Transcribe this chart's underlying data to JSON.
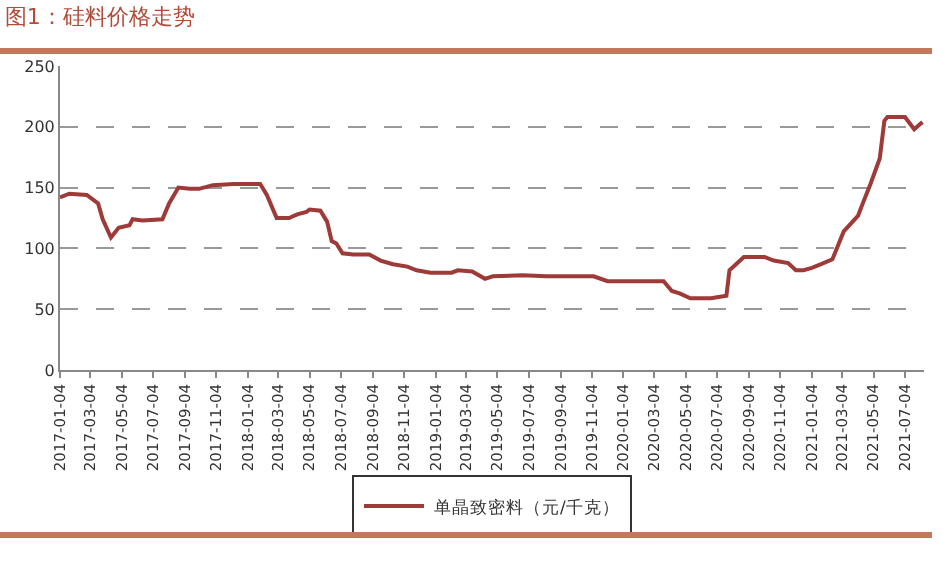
{
  "chart_data": {
    "type": "line",
    "title": "图1：硅料价格走势",
    "x": [
      "2017-01-04",
      "2017-01-22",
      "2017-02-25",
      "2017-03-19",
      "2017-03-28",
      "2017-04-13",
      "2017-04-28",
      "2017-05-19",
      "2017-05-25",
      "2017-06-13",
      "2017-07-22",
      "2017-08-04",
      "2017-08-22",
      "2017-09-13",
      "2017-10-01",
      "2017-10-28",
      "2017-12-07",
      "2018-01-28",
      "2018-02-10",
      "2018-03-01",
      "2018-03-25",
      "2018-04-10",
      "2018-04-28",
      "2018-05-04",
      "2018-05-25",
      "2018-06-07",
      "2018-06-16",
      "2018-06-25",
      "2018-07-07",
      "2018-07-28",
      "2018-08-28",
      "2018-09-19",
      "2018-10-13",
      "2018-11-10",
      "2018-11-28",
      "2018-12-25",
      "2019-02-04",
      "2019-02-16",
      "2019-03-16",
      "2019-04-10",
      "2019-04-25",
      "2019-06-22",
      "2019-08-07",
      "2019-11-07",
      "2019-12-04",
      "2020-03-22",
      "2020-04-07",
      "2020-04-22",
      "2020-05-13",
      "2020-06-22",
      "2020-07-22",
      "2020-07-28",
      "2020-08-25",
      "2020-10-04",
      "2020-10-22",
      "2020-11-19",
      "2020-12-04",
      "2020-12-19",
      "2021-01-04",
      "2021-01-22",
      "2021-02-13",
      "2021-03-07",
      "2021-04-04",
      "2021-04-13",
      "2021-04-28",
      "2021-05-16",
      "2021-05-25",
      "2021-05-31",
      "2021-07-04",
      "2021-07-22",
      "2021-08-07"
    ],
    "series": [
      {
        "name": "单晶致密料（元/千克）",
        "color": "#9e3a38",
        "values": [
          142,
          145,
          144,
          137,
          124,
          109,
          117,
          119,
          124,
          123,
          124,
          137,
          150,
          149,
          149,
          152,
          153,
          153,
          144,
          125,
          125,
          128,
          130,
          132,
          131,
          122,
          106,
          104,
          96,
          95,
          95,
          90,
          87,
          85,
          82,
          80,
          80,
          82,
          81,
          75,
          77,
          78,
          77,
          77,
          73,
          73,
          65,
          63,
          59,
          59,
          61,
          82,
          93,
          93,
          90,
          88,
          82,
          82,
          84,
          87,
          91,
          114,
          127,
          137,
          153,
          174,
          205,
          208,
          208,
          198,
          204
        ]
      }
    ],
    "xlim": [
      "2017-01-04",
      "2021-08-10"
    ],
    "xticks": [
      "2017-01-04",
      "2017-03-04",
      "2017-05-04",
      "2017-07-04",
      "2017-09-04",
      "2017-11-04",
      "2018-01-04",
      "2018-03-04",
      "2018-05-04",
      "2018-07-04",
      "2018-09-04",
      "2018-11-04",
      "2019-01-04",
      "2019-03-04",
      "2019-05-04",
      "2019-07-04",
      "2019-09-04",
      "2019-11-04",
      "2020-01-04",
      "2020-03-04",
      "2020-05-04",
      "2020-07-04",
      "2020-09-04",
      "2020-11-04",
      "2021-01-04",
      "2021-03-04",
      "2021-05-04",
      "2021-07-04"
    ],
    "ylim": [
      0,
      250
    ],
    "yticks": [
      0,
      50,
      100,
      150,
      200,
      250
    ],
    "grid": "y",
    "legend": "bottom",
    "marker": "none",
    "line_style": "solid"
  }
}
